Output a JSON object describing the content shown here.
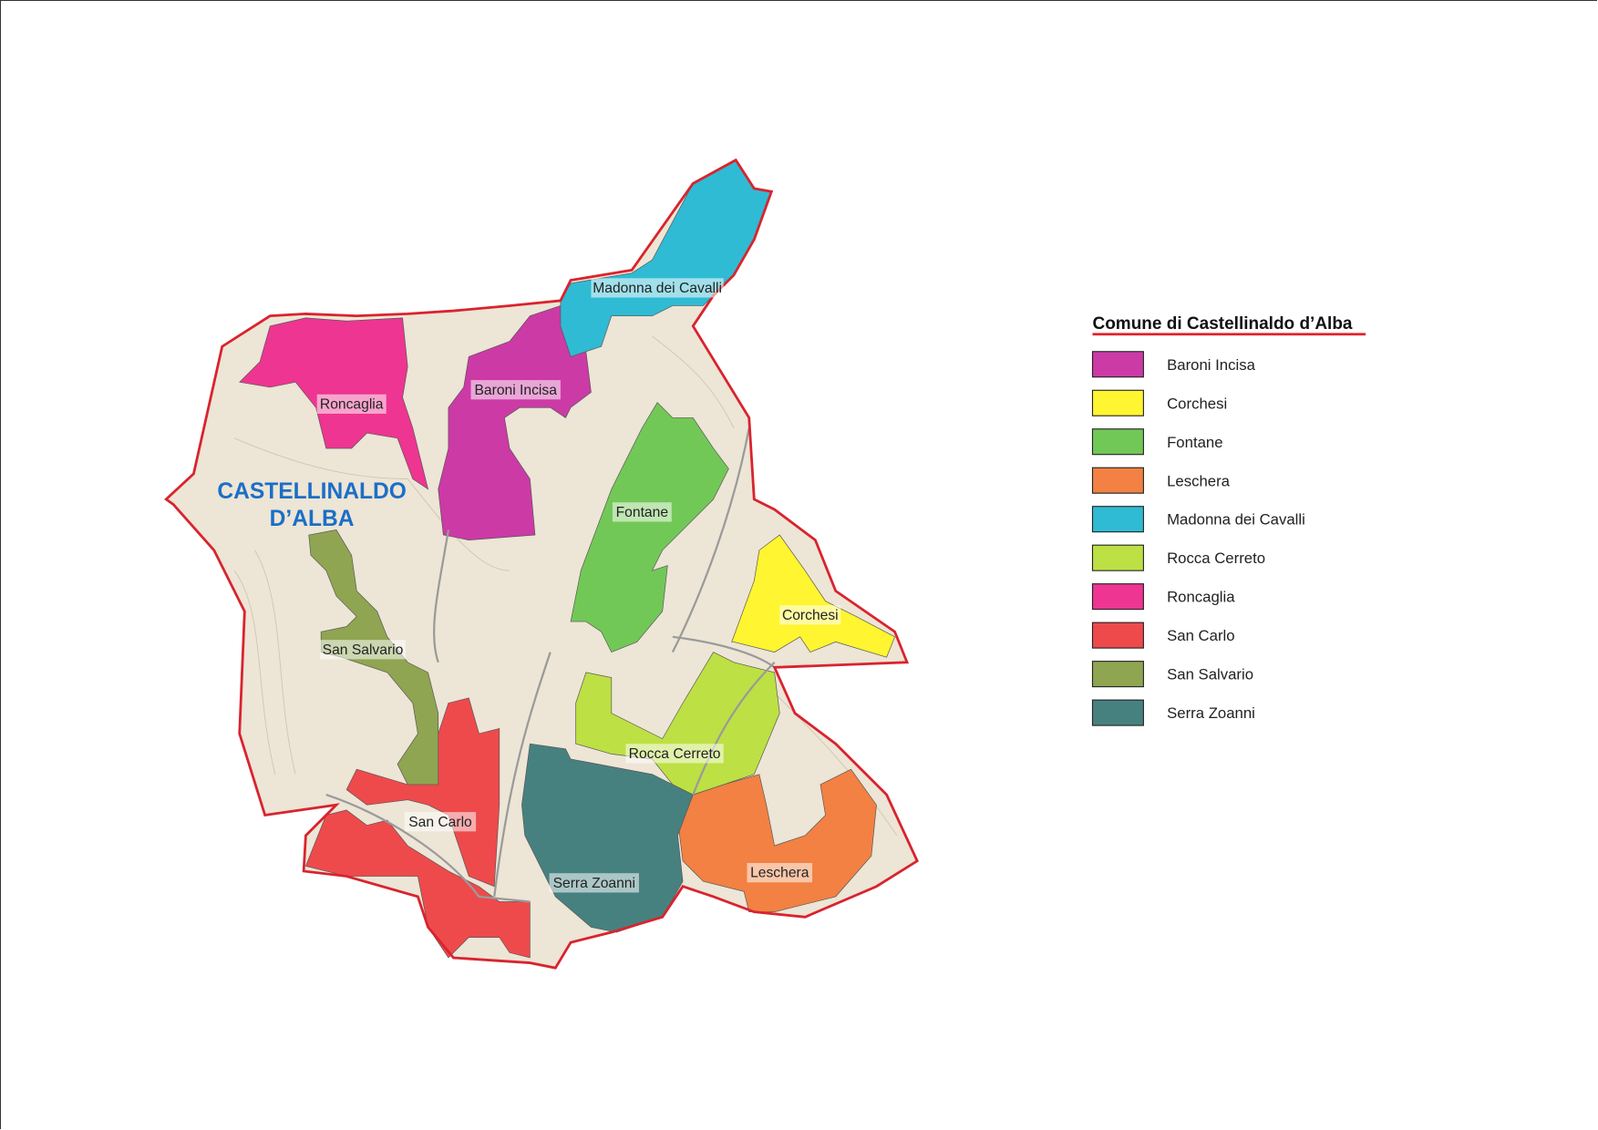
{
  "map": {
    "town_label_line1": "CASTELLINALDO",
    "town_label_line2": "D’ALBA",
    "town_label_color": "#1b6fc6",
    "boundary_color": "#d9232e",
    "background_color": "#ede5d6",
    "regions": [
      {
        "label": "Baroni Incisa",
        "color": "#cc3aa6"
      },
      {
        "label": "Corchesi",
        "color": "#fff530"
      },
      {
        "label": "Fontane",
        "color": "#72c857"
      },
      {
        "label": "Leschera",
        "color": "#f28143"
      },
      {
        "label": "Madonna dei Cavalli",
        "color": "#2fbbd3"
      },
      {
        "label": "Rocca Cerreto",
        "color": "#bde044"
      },
      {
        "label": "Roncaglia",
        "color": "#ee3591"
      },
      {
        "label": "San Carlo",
        "color": "#ee4a4c"
      },
      {
        "label": "San Salvario",
        "color": "#8fa552"
      },
      {
        "label": "Serra Zoanni",
        "color": "#468180"
      }
    ]
  },
  "legend": {
    "title": "Comune di Castellinaldo d’Alba",
    "underline_color": "#e3202a",
    "items": [
      {
        "label": "Baroni Incisa",
        "color": "#cc3aa6"
      },
      {
        "label": "Corchesi",
        "color": "#fff530"
      },
      {
        "label": "Fontane",
        "color": "#72c857"
      },
      {
        "label": "Leschera",
        "color": "#f28143"
      },
      {
        "label": "Madonna dei Cavalli",
        "color": "#2fbbd3"
      },
      {
        "label": "Rocca Cerreto",
        "color": "#bde044"
      },
      {
        "label": "Roncaglia",
        "color": "#ee3591"
      },
      {
        "label": "San Carlo",
        "color": "#ee4a4c"
      },
      {
        "label": "San Salvario",
        "color": "#8fa552"
      },
      {
        "label": "Serra Zoanni",
        "color": "#468180"
      }
    ]
  }
}
